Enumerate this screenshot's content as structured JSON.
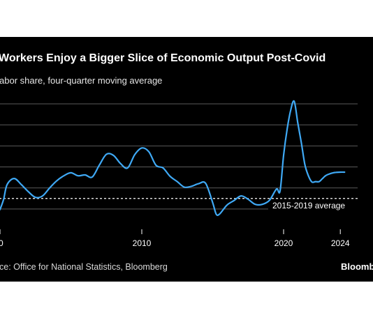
{
  "title": "Workers Enjoy a Bigger Slice of Economic Output Post-Covid",
  "subtitle": "abor share, four-quarter moving average",
  "source": "ce: Office for National Statistics, Bloomberg",
  "logo": "Bloomb",
  "colors": {
    "background": "#000000",
    "line": "#3fa9f5",
    "grid": "#5a5a5a",
    "text": "#ffffff"
  },
  "chart_data": {
    "type": "line",
    "title": "Workers Enjoy a Bigger Slice of Economic Output Post-Covid",
    "ylabel": "abor share, four-quarter moving average",
    "x_ticks": [
      {
        "year": 2000,
        "label": "0"
      },
      {
        "year": 2010,
        "label": "2010"
      },
      {
        "year": 2020,
        "label": "2020"
      },
      {
        "year": 2024,
        "label": "2024"
      }
    ],
    "xlim": [
      2000,
      2026
    ],
    "ylim": [
      0,
      6
    ],
    "y_gridlines": [
      1,
      2,
      3,
      4,
      5,
      6
    ],
    "grid": true,
    "reference_line": {
      "value": 1.5,
      "label": "2015-2019 average"
    },
    "series": [
      {
        "x": [
          2000,
          2000.25,
          2000.5,
          2001,
          2001.5,
          2002,
          2002.5,
          2003,
          2003.5,
          2004,
          2004.5,
          2005,
          2005.5,
          2006,
          2006.5,
          2007,
          2007.5,
          2008,
          2008.5,
          2009,
          2009.5,
          2010,
          2010.5,
          2011,
          2011.5,
          2012,
          2012.5,
          2013,
          2013.5,
          2014,
          2014.5,
          2015,
          2015.25,
          2015.5,
          2016,
          2016.5,
          2017,
          2017.5,
          2018,
          2018.5,
          2019,
          2019.5,
          2019.75,
          2020,
          2020.25,
          2020.5,
          2020.75,
          2021,
          2021.25,
          2021.5,
          2021.75,
          2022,
          2022.25,
          2022.5,
          2022.75,
          2023,
          2023.5,
          2024,
          2024.3
        ],
        "values": [
          0.97,
          1.45,
          2.16,
          2.45,
          2.16,
          1.82,
          1.55,
          1.62,
          2.0,
          2.34,
          2.58,
          2.72,
          2.58,
          2.62,
          2.52,
          3.08,
          3.6,
          3.55,
          3.16,
          2.95,
          3.58,
          3.9,
          3.72,
          3.08,
          2.95,
          2.55,
          2.3,
          2.04,
          2.08,
          2.2,
          2.22,
          1.3,
          0.75,
          0.77,
          1.18,
          1.4,
          1.62,
          1.46,
          1.22,
          1.22,
          1.41,
          1.95,
          1.85,
          3.55,
          4.8,
          5.7,
          6.12,
          5.1,
          4.15,
          3.12,
          2.58,
          2.28,
          2.3,
          2.3,
          2.45,
          2.6,
          2.72,
          2.75,
          2.75
        ]
      }
    ]
  }
}
